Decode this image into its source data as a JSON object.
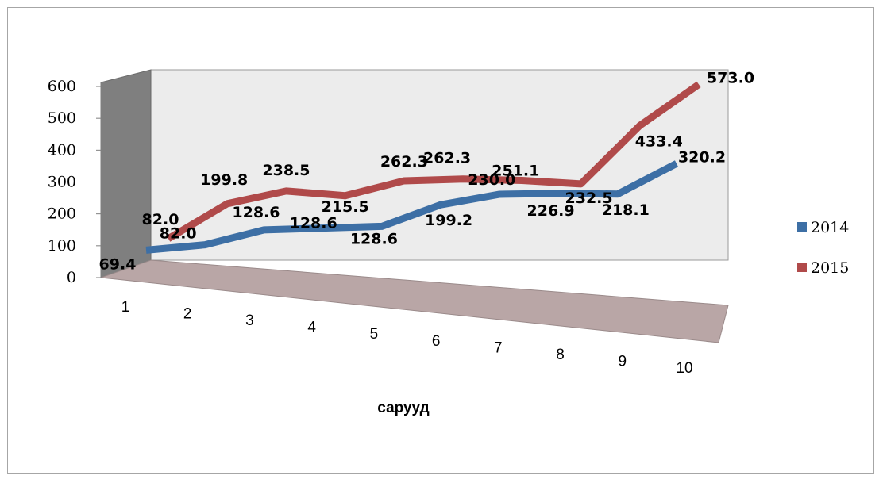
{
  "chart_data": {
    "type": "line",
    "style": "3d",
    "categories": [
      "1",
      "2",
      "3",
      "4",
      "5",
      "6",
      "7",
      "8",
      "9",
      "10"
    ],
    "series": [
      {
        "name": "2014",
        "color": "#3d6fa5",
        "values": [
          69.4,
          82.0,
          128.6,
          128.6,
          128.6,
          199.2,
          230.0,
          226.9,
          218.1,
          320.2
        ],
        "labels": [
          "69.4",
          "82.0",
          "128.6",
          "128.6",
          "128.6",
          "199.2",
          "230.0",
          "226.9",
          "218.1",
          "320.2"
        ]
      },
      {
        "name": "2015",
        "color": "#b04a4a",
        "values": [
          82.0,
          199.8,
          238.5,
          215.5,
          262.3,
          262.3,
          251.1,
          232.5,
          433.4,
          573.0
        ],
        "labels": [
          "82.0",
          "199.8",
          "238.5",
          "215.5",
          "262.3",
          "262.3",
          "251.1",
          "232.5",
          "433.4",
          "573.0"
        ]
      }
    ],
    "yticks": [
      "0",
      "100",
      "200",
      "300",
      "400",
      "500",
      "600"
    ],
    "ylim": [
      0,
      600
    ],
    "xlabel": "сарууд",
    "title": "",
    "ylabel": "",
    "legend_position": "right",
    "grid": false
  }
}
